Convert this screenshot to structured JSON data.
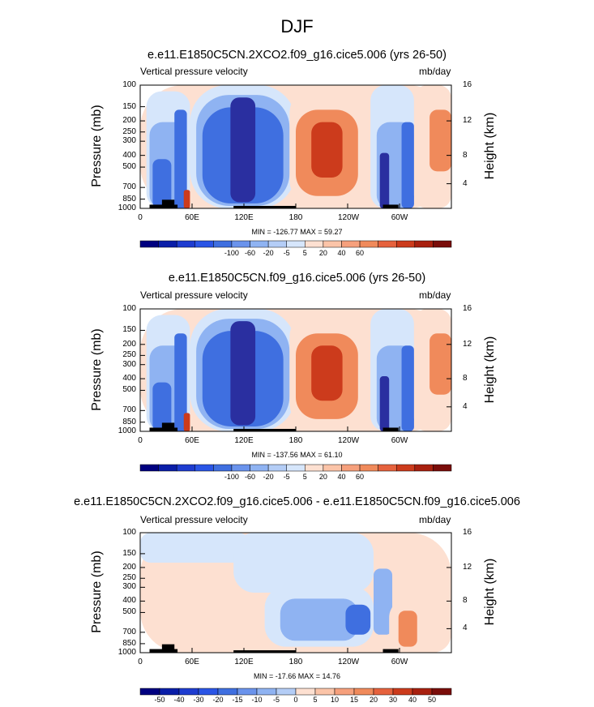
{
  "title": "DJF",
  "colors": {
    "blue_dark": "#2a2fa0",
    "blue_mid": "#3f6fe0",
    "blue_light": "#8fb3f2",
    "blue_pale": "#d6e6fb",
    "red_pale": "#fde0d1",
    "red_mid": "#f08a5b",
    "red_dark": "#cc3b1c",
    "topography": "#000000"
  },
  "panels": [
    {
      "title": "e.e11.E1850C5CN.2XCO2.f09_g16.cice5.006 (yrs 26-50)",
      "left_label": "Vertical pressure velocity",
      "right_label": "mb/day",
      "y_label": "Pressure (mb)",
      "y2_label": "Height (km)",
      "minmax": "MIN = -126.77  MAX =  59.27",
      "colorbar_ticks": [
        "-100",
        "-60",
        "-20",
        "-5",
        "5",
        "20",
        "40",
        "60"
      ]
    },
    {
      "title": "e.e11.E1850C5CN.f09_g16.cice5.006 (yrs 26-50)",
      "left_label": "Vertical pressure velocity",
      "right_label": "mb/day",
      "y_label": "Pressure (mb)",
      "y2_label": "Height (km)",
      "minmax": "MIN = -137.56  MAX =  61.10",
      "colorbar_ticks": [
        "-100",
        "-60",
        "-20",
        "-5",
        "5",
        "20",
        "40",
        "60"
      ]
    },
    {
      "title": "e.e11.E1850C5CN.2XCO2.f09_g16.cice5.006 - e.e11.E1850C5CN.f09_g16.cice5.006",
      "left_label": "Vertical pressure velocity",
      "right_label": "mb/day",
      "y_label": "Pressure (mb)",
      "y2_label": "Height (km)",
      "minmax": "MIN = -17.66  MAX =  14.76",
      "colorbar_ticks": [
        "-50",
        "-40",
        "-30",
        "-20",
        "-15",
        "-10",
        "-5",
        "0",
        "5",
        "10",
        "15",
        "20",
        "30",
        "40",
        "50"
      ]
    }
  ],
  "chart_data": [
    {
      "type": "heatmap",
      "title": "e.e11.E1850C5CN.2XCO2.f09_g16.cice5.006 (yrs 26-50)",
      "ylabel": "Pressure (mb)",
      "y2label": "Height (km)",
      "x_ticks": [
        "0",
        "60E",
        "120E",
        "180",
        "120W",
        "60W"
      ],
      "y_ticks": [
        "100",
        "150",
        "200",
        "250",
        "300",
        "400",
        "500",
        "700",
        "850",
        "1000"
      ],
      "y2_ticks": [
        "16",
        "12",
        "8",
        "4"
      ],
      "min": -126.77,
      "max": 59.27,
      "colorbar_ticks": [
        -100,
        -60,
        -20,
        -5,
        5,
        20,
        40,
        60
      ]
    },
    {
      "type": "heatmap",
      "title": "e.e11.E1850C5CN.f09_g16.cice5.006 (yrs 26-50)",
      "ylabel": "Pressure (mb)",
      "y2label": "Height (km)",
      "x_ticks": [
        "0",
        "60E",
        "120E",
        "180",
        "120W",
        "60W"
      ],
      "y_ticks": [
        "100",
        "150",
        "200",
        "250",
        "300",
        "400",
        "500",
        "700",
        "850",
        "1000"
      ],
      "y2_ticks": [
        "16",
        "12",
        "8",
        "4"
      ],
      "min": -137.56,
      "max": 61.1,
      "colorbar_ticks": [
        -100,
        -60,
        -20,
        -5,
        5,
        20,
        40,
        60
      ]
    },
    {
      "type": "heatmap",
      "title": "e.e11.E1850C5CN.2XCO2.f09_g16.cice5.006 - e.e11.E1850C5CN.f09_g16.cice5.006",
      "ylabel": "Pressure (mb)",
      "y2label": "Height (km)",
      "x_ticks": [
        "0",
        "60E",
        "120E",
        "180",
        "120W",
        "60W"
      ],
      "y_ticks": [
        "100",
        "150",
        "200",
        "250",
        "300",
        "400",
        "500",
        "700",
        "850",
        "1000"
      ],
      "y2_ticks": [
        "16",
        "12",
        "8",
        "4"
      ],
      "min": -17.66,
      "max": 14.76,
      "colorbar_ticks": [
        -50,
        -40,
        -30,
        -20,
        -15,
        -10,
        -5,
        0,
        5,
        10,
        15,
        20,
        30,
        40,
        50
      ]
    }
  ]
}
